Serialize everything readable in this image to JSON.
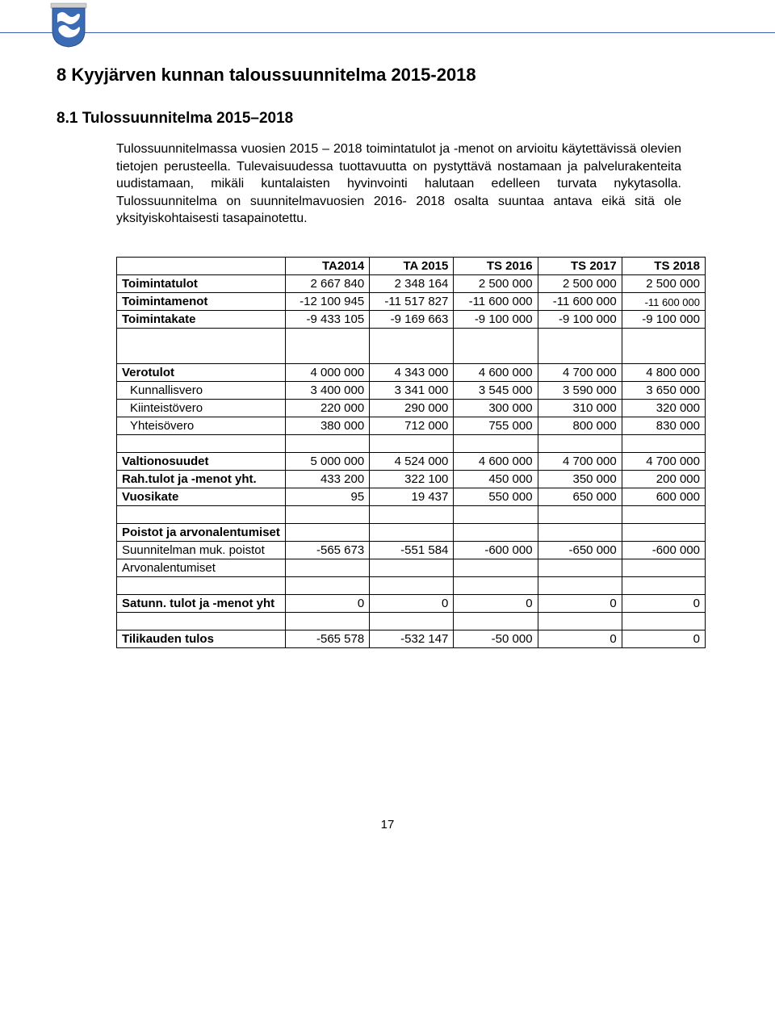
{
  "header": {
    "rule_color": "#3b5faa",
    "logo_colors": {
      "shield": "#3b6cb3",
      "wave": "#ffffff",
      "top": "#d9d9d9"
    }
  },
  "heading": "8  Kyyjärven kunnan taloussuunnitelma 2015-2018",
  "subheading": "8.1  Tulossuunnitelma 2015–2018",
  "paragraph": "Tulossuunnitelmassa vuosien 2015 – 2018 toimintatulot ja -menot on arvioitu käytettävissä olevien tietojen perusteella. Tulevaisuudessa tuottavuutta on pystyttävä nostamaan ja palvelurakenteita uudistamaan, mikäli kuntalaisten hyvinvointi halutaan edelleen turvata nykytasolla. Tulossuunnitelma on suunnitelmavuosien 2016- 2018 osalta suuntaa antava eikä sitä ole yksityiskohtaisesti tasapainotettu.",
  "table": {
    "columns": [
      "",
      "TA2014",
      "TA 2015",
      "TS 2016",
      "TS 2017",
      "TS 2018"
    ],
    "rows": [
      {
        "type": "data",
        "bold": true,
        "label": "Toimintatulot",
        "values": [
          "2 667 840",
          "2 348 164",
          "2 500 000",
          "2 500 000",
          "2 500 000"
        ]
      },
      {
        "type": "data",
        "bold": true,
        "label": "Toimintamenot",
        "values": [
          "-12 100 945",
          "-11 517 827",
          "-11 600 000",
          "-11 600 000",
          "-11 600 000"
        ],
        "small_last": true
      },
      {
        "type": "data",
        "bold": true,
        "label": "Toimintakate",
        "values": [
          "-9 433 105",
          "-9 169 663",
          "-9 100 000",
          "-9 100 000",
          "-9 100 000"
        ]
      },
      {
        "type": "spacer"
      },
      {
        "type": "spacer"
      },
      {
        "type": "data",
        "bold": true,
        "label": "Verotulot",
        "values": [
          "4 000 000",
          "4 343 000",
          "4 600 000",
          "4 700 000",
          "4 800 000"
        ]
      },
      {
        "type": "data",
        "bold": false,
        "indent": true,
        "label": "Kunnallisvero",
        "values": [
          "3 400 000",
          "3 341 000",
          "3 545 000",
          "3 590 000",
          "3 650 000"
        ]
      },
      {
        "type": "data",
        "bold": false,
        "indent": true,
        "label": "Kiinteistövero",
        "values": [
          "220 000",
          "290 000",
          "300 000",
          "310 000",
          "320 000"
        ]
      },
      {
        "type": "data",
        "bold": false,
        "indent": true,
        "label": "Yhteisövero",
        "values": [
          "380 000",
          "712 000",
          "755 000",
          "800 000",
          "830 000"
        ]
      },
      {
        "type": "spacer"
      },
      {
        "type": "data",
        "bold": true,
        "label": "Valtionosuudet",
        "values": [
          "5 000 000",
          "4 524 000",
          "4 600 000",
          "4 700 000",
          "4 700 000"
        ]
      },
      {
        "type": "data",
        "bold": true,
        "label": "Rah.tulot ja -menot yht.",
        "values": [
          "433 200",
          "322 100",
          "450 000",
          "350 000",
          "200 000"
        ]
      },
      {
        "type": "data",
        "bold": true,
        "label": "Vuosikate",
        "values": [
          "95",
          "19 437",
          "550 000",
          "650 000",
          "600 000"
        ]
      },
      {
        "type": "spacer"
      },
      {
        "type": "data",
        "bold": true,
        "label": "Poistot ja arvonalentumiset",
        "values": [
          "",
          "",
          "",
          "",
          ""
        ]
      },
      {
        "type": "data",
        "bold": false,
        "label": "Suunnitelman muk. poistot",
        "values": [
          "-565 673",
          "-551 584",
          "-600 000",
          "-650 000",
          "-600 000"
        ]
      },
      {
        "type": "data",
        "bold": false,
        "label": "Arvonalentumiset",
        "values": [
          "",
          "",
          "",
          "",
          ""
        ]
      },
      {
        "type": "spacer"
      },
      {
        "type": "data",
        "bold": true,
        "label": "Satunn. tulot ja -menot yht",
        "values": [
          "0",
          "0",
          "0",
          "0",
          "0"
        ]
      },
      {
        "type": "spacer"
      },
      {
        "type": "data",
        "bold": true,
        "label": "Tilikauden tulos",
        "values": [
          "-565 578",
          "-532 147",
          "-50 000",
          "0",
          "0"
        ]
      }
    ]
  },
  "page_number": "17"
}
